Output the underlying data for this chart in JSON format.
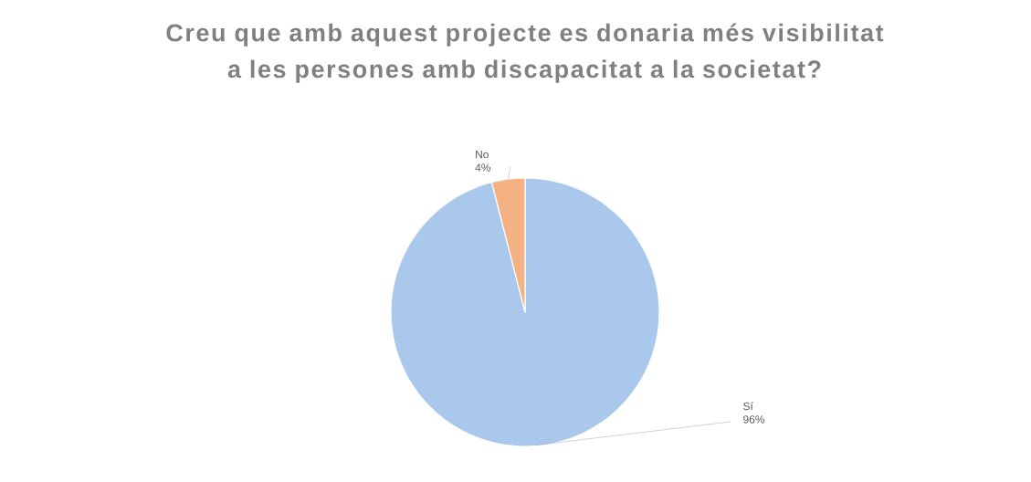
{
  "chart_data": {
    "type": "pie",
    "title": "Creu que amb aquest projecte es donaria més visibilitat a les persones amb discapacitat a la societat?",
    "categories": [
      "Sí",
      "No"
    ],
    "values": [
      96,
      4
    ],
    "value_labels": [
      "96%",
      "4%"
    ],
    "colors": [
      "#a9c8ec",
      "#f4b183"
    ],
    "legend": false
  }
}
